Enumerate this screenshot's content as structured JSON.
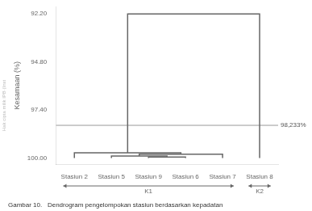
{
  "chart_data": {
    "type": "dendrogram",
    "categories": [
      "Stasiun 2",
      "Stasiun 5",
      "Stasiun 9",
      "Stasiun 6",
      "Stasiun 7",
      "Stasiun 8"
    ],
    "baseline": 100.0,
    "merges": [
      {
        "members": [
          [
            "Stasiun 9"
          ],
          [
            "Stasiun 6"
          ]
        ],
        "value": 99.945
      },
      {
        "members": [
          [
            "Stasiun 5"
          ],
          [
            "Stasiun 9",
            "Stasiun 6"
          ]
        ],
        "value": 99.9
      },
      {
        "members": [
          [
            "Stasiun 5",
            "Stasiun 9",
            "Stasiun 6"
          ],
          [
            "Stasiun 7"
          ]
        ],
        "value": 99.8
      },
      {
        "members": [
          [
            "Stasiun 2"
          ],
          [
            "Stasiun 5",
            "Stasiun 9",
            "Stasiun 6",
            "Stasiun 7"
          ]
        ],
        "value": 99.72
      },
      {
        "members": [
          [
            "Stasiun 2",
            "Stasiun 5",
            "Stasiun 9",
            "Stasiun 6",
            "Stasiun 7"
          ],
          [
            "Stasiun 8"
          ]
        ],
        "value": 92.2
      }
    ],
    "color": "#666666",
    "ylabel": "Kesamaan (%)",
    "ylim": [
      100.35,
      91.8
    ],
    "yticks": [
      {
        "value": 92.2,
        "label": "92.20"
      },
      {
        "value": 94.8,
        "label": "94.80"
      },
      {
        "value": 97.4,
        "label": "97.40"
      },
      {
        "value": 100,
        "label": "100.00"
      }
    ],
    "grid": false,
    "reference_line": {
      "value": 98.233,
      "label": "98,233%",
      "color": "#999999"
    },
    "groups": [
      {
        "label": "K1",
        "from": "Stasiun 2",
        "to": "Stasiun 7"
      },
      {
        "label": "K2",
        "from": "Stasiun 8",
        "to": "Stasiun 8"
      }
    ],
    "caption": "Gambar 10.   Dendrogram pengelompokan stasiun berdasarkan kepadatan",
    "watermark": "Hak cipta milik IPB (Inst"
  }
}
